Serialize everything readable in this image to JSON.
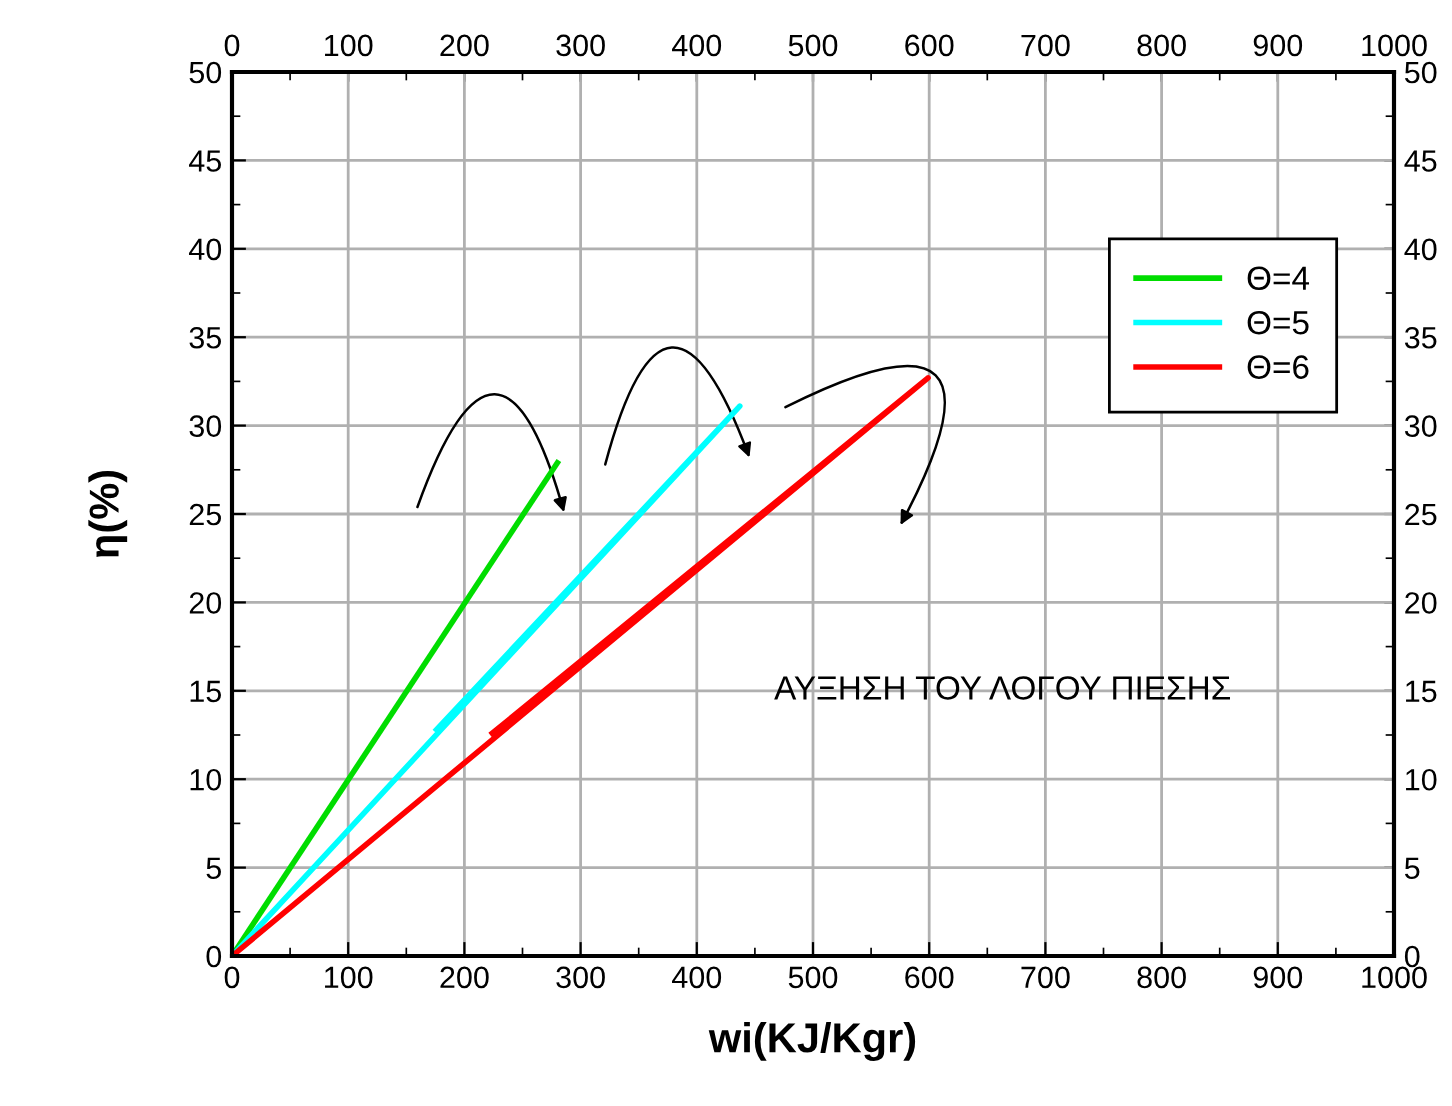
{
  "chart_data": {
    "type": "line",
    "xlabel": "wi(KJ/Kgr)",
    "ylabel": "η(%)",
    "series": [
      {
        "name": "Θ=4",
        "color": "#00dd00",
        "x": [
          0,
          280
        ],
        "values": [
          0,
          27.9
        ]
      },
      {
        "name": "Θ=5",
        "color": "#00ffff",
        "x": [
          0,
          437,
          176
        ],
        "values": [
          0,
          31.1,
          12.8
        ]
      },
      {
        "name": "Θ=6",
        "color": "#ff0000",
        "x": [
          0,
          599,
          224
        ],
        "values": [
          0,
          32.7,
          12.6
        ]
      }
    ],
    "annotations": [
      "ΑΥΞΗΣΗ ΤΟΥ ΛΟΓΟΥ ΠΙΕΣΗΣ"
    ],
    "xlim": [
      0,
      1000
    ],
    "xticks": [
      0,
      100,
      200,
      300,
      400,
      500,
      600,
      700,
      800,
      900,
      1000
    ],
    "x2lim": [
      0,
      1000
    ],
    "x2ticks": [
      0,
      100,
      200,
      300,
      400,
      500,
      600,
      700,
      800,
      900,
      1000
    ],
    "ylim": [
      0,
      50
    ],
    "yticks": [
      0,
      5,
      10,
      15,
      20,
      25,
      30,
      35,
      40,
      45,
      50
    ],
    "y2lim": [
      0,
      50
    ],
    "y2ticks": [
      0,
      5,
      10,
      15,
      20,
      25,
      30,
      35,
      40,
      45,
      50
    ],
    "grid": true,
    "legend": "top right",
    "marker": "none",
    "line_style": "solid"
  }
}
